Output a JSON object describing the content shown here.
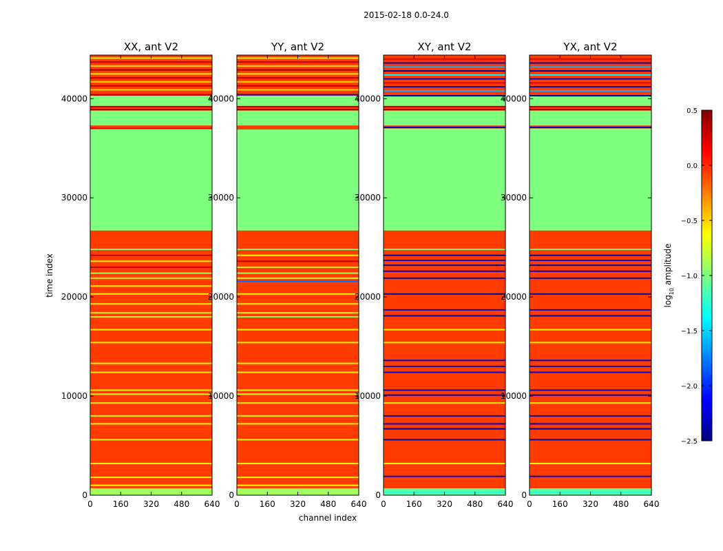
{
  "chart_data": {
    "type": "heatmap",
    "suptitle": "2015-02-18 0.0-24.0",
    "xlabel": "channel index",
    "ylabel": "time index",
    "xlim": [
      0,
      640
    ],
    "ylim": [
      0,
      44400
    ],
    "xticks": [
      "0",
      "160",
      "320",
      "480",
      "640"
    ],
    "xtick_values": [
      0,
      160,
      320,
      480,
      640
    ],
    "yticks": [
      "0",
      "10000",
      "20000",
      "30000",
      "40000"
    ],
    "ytick_values": [
      0,
      10000,
      20000,
      30000,
      40000
    ],
    "colorbar": {
      "label_prefix": "log",
      "label_sub": "10",
      "label_suffix": " amplitude",
      "range": [
        -2.5,
        0.5
      ],
      "ticks": [
        "0.5",
        "0.0",
        "−0.5",
        "−1.0",
        "−1.5",
        "−2.0",
        "−2.5"
      ],
      "tick_values": [
        0.5,
        0.0,
        -0.5,
        -1.0,
        -1.5,
        -2.0,
        -2.5
      ],
      "colors": [
        "#00007f",
        "#0000ff",
        "#007fff",
        "#00ffff",
        "#7fff7f",
        "#ffff00",
        "#ff7f00",
        "#ff0000",
        "#7f0000"
      ]
    },
    "panels": [
      {
        "title": "XX, ant V2",
        "base_value": -0.05,
        "bands": [
          {
            "from": 0,
            "to": 700,
            "value": -0.9
          },
          {
            "from": 26700,
            "to": 37000,
            "value": -1.0
          },
          {
            "from": 37300,
            "to": 38800,
            "value": -1.0
          },
          {
            "from": 39200,
            "to": 40300,
            "value": -1.0
          }
        ],
        "lines": [
          {
            "t": 1000,
            "value": -0.6
          },
          {
            "t": 1800,
            "value": -0.6
          },
          {
            "t": 3200,
            "value": -0.6
          },
          {
            "t": 5600,
            "value": -0.6
          },
          {
            "t": 7200,
            "value": -0.6
          },
          {
            "t": 8000,
            "value": -0.6
          },
          {
            "t": 9300,
            "value": -0.6
          },
          {
            "t": 10200,
            "value": -0.6
          },
          {
            "t": 10600,
            "value": -0.6
          },
          {
            "t": 12400,
            "value": -0.6
          },
          {
            "t": 13300,
            "value": -0.6
          },
          {
            "t": 15400,
            "value": -0.6
          },
          {
            "t": 16700,
            "value": -0.6
          },
          {
            "t": 18000,
            "value": -0.6
          },
          {
            "t": 18400,
            "value": -0.6
          },
          {
            "t": 19300,
            "value": -0.6
          },
          {
            "t": 20300,
            "value": -0.6
          },
          {
            "t": 21100,
            "value": -0.6
          },
          {
            "t": 21900,
            "value": -0.6
          },
          {
            "t": 22400,
            "value": -0.9
          },
          {
            "t": 23000,
            "value": 0.3
          },
          {
            "t": 23600,
            "value": -0.6
          },
          {
            "t": 24200,
            "value": 0.3
          },
          {
            "t": 24800,
            "value": -1.0
          },
          {
            "t": 37000,
            "value": 0.2
          },
          {
            "t": 38900,
            "value": 0.4
          },
          {
            "t": 39200,
            "value": 0.4
          },
          {
            "t": 40400,
            "value": 0.4
          },
          {
            "t": 40900,
            "value": -0.5
          },
          {
            "t": 41300,
            "value": 0.3
          },
          {
            "t": 41700,
            "value": -0.5
          },
          {
            "t": 42100,
            "value": 0.3
          },
          {
            "t": 42500,
            "value": -0.6
          },
          {
            "t": 42900,
            "value": 0.4
          },
          {
            "t": 43300,
            "value": -0.5
          },
          {
            "t": 43700,
            "value": 0.3
          },
          {
            "t": 44100,
            "value": -0.6
          }
        ]
      },
      {
        "title": "YY, ant V2",
        "base_value": -0.05,
        "bands": [
          {
            "from": 0,
            "to": 700,
            "value": -0.9
          },
          {
            "from": 26700,
            "to": 36900,
            "value": -1.0
          },
          {
            "from": 37300,
            "to": 38800,
            "value": -1.0
          },
          {
            "from": 39200,
            "to": 40300,
            "value": -1.0
          }
        ],
        "lines": [
          {
            "t": 1000,
            "value": -0.6
          },
          {
            "t": 1800,
            "value": -0.6
          },
          {
            "t": 3200,
            "value": -0.6
          },
          {
            "t": 5600,
            "value": -0.6
          },
          {
            "t": 7200,
            "value": -0.6
          },
          {
            "t": 8000,
            "value": -0.6
          },
          {
            "t": 9300,
            "value": -0.6
          },
          {
            "t": 10200,
            "value": -0.6
          },
          {
            "t": 10600,
            "value": -0.6
          },
          {
            "t": 12400,
            "value": -0.6
          },
          {
            "t": 13300,
            "value": -0.6
          },
          {
            "t": 15400,
            "value": -0.6
          },
          {
            "t": 16700,
            "value": -0.6
          },
          {
            "t": 18000,
            "value": -0.9
          },
          {
            "t": 18400,
            "value": -0.6
          },
          {
            "t": 19300,
            "value": -0.6
          },
          {
            "t": 20300,
            "value": -0.6
          },
          {
            "t": 21600,
            "value": -1.8
          },
          {
            "t": 21900,
            "value": -0.6
          },
          {
            "t": 22400,
            "value": -0.9
          },
          {
            "t": 23000,
            "value": -0.6
          },
          {
            "t": 23600,
            "value": 0.3
          },
          {
            "t": 24200,
            "value": -0.6
          },
          {
            "t": 24800,
            "value": -1.0
          },
          {
            "t": 37000,
            "value": -0.05
          },
          {
            "t": 38900,
            "value": 0.4
          },
          {
            "t": 39200,
            "value": 0.4
          },
          {
            "t": 40400,
            "value": -2.3
          },
          {
            "t": 40900,
            "value": -0.5
          },
          {
            "t": 41300,
            "value": 0.3
          },
          {
            "t": 41700,
            "value": -0.5
          },
          {
            "t": 42100,
            "value": 0.3
          },
          {
            "t": 42500,
            "value": -0.6
          },
          {
            "t": 42900,
            "value": 0.4
          },
          {
            "t": 43300,
            "value": -0.5
          },
          {
            "t": 43700,
            "value": 0.3
          },
          {
            "t": 44100,
            "value": -0.6
          }
        ]
      },
      {
        "title": "XY, ant V2",
        "base_value": -0.05,
        "bands": [
          {
            "from": 0,
            "to": 700,
            "value": -1.1
          },
          {
            "from": 26700,
            "to": 37000,
            "value": -1.0
          },
          {
            "from": 37300,
            "to": 38800,
            "value": -1.0
          },
          {
            "from": 39200,
            "to": 40300,
            "value": -1.0
          }
        ],
        "lines": [
          {
            "t": 300,
            "value": -1.3
          },
          {
            "t": 1900,
            "value": -2.3
          },
          {
            "t": 3200,
            "value": -0.6
          },
          {
            "t": 5600,
            "value": -2.4
          },
          {
            "t": 6700,
            "value": -2.4
          },
          {
            "t": 7200,
            "value": -2.3
          },
          {
            "t": 8000,
            "value": -2.4
          },
          {
            "t": 9300,
            "value": -0.6
          },
          {
            "t": 10100,
            "value": -2.3
          },
          {
            "t": 10600,
            "value": -2.4
          },
          {
            "t": 12400,
            "value": -2.3
          },
          {
            "t": 13000,
            "value": -2.4
          },
          {
            "t": 13600,
            "value": -2.3
          },
          {
            "t": 15400,
            "value": -0.6
          },
          {
            "t": 16700,
            "value": -0.6
          },
          {
            "t": 18100,
            "value": -2.4
          },
          {
            "t": 18700,
            "value": -2.3
          },
          {
            "t": 20300,
            "value": -2.4
          },
          {
            "t": 21900,
            "value": -2.4
          },
          {
            "t": 22600,
            "value": -2.3
          },
          {
            "t": 23200,
            "value": -2.4
          },
          {
            "t": 23700,
            "value": -2.3
          },
          {
            "t": 24200,
            "value": -2.4
          },
          {
            "t": 24800,
            "value": -1.0
          },
          {
            "t": 37100,
            "value": -2.3
          },
          {
            "t": 38900,
            "value": 0.4
          },
          {
            "t": 39200,
            "value": 0.4
          },
          {
            "t": 40300,
            "value": -2.4
          },
          {
            "t": 40800,
            "value": -1.6
          },
          {
            "t": 41200,
            "value": -2.4
          },
          {
            "t": 41600,
            "value": 0.2
          },
          {
            "t": 42000,
            "value": -2.3
          },
          {
            "t": 42400,
            "value": -1.4
          },
          {
            "t": 42800,
            "value": -2.4
          },
          {
            "t": 43200,
            "value": -1.6
          },
          {
            "t": 43600,
            "value": -2.3
          },
          {
            "t": 44000,
            "value": 0.2
          }
        ]
      },
      {
        "title": "YX, ant V2",
        "base_value": -0.05,
        "bands": [
          {
            "from": 0,
            "to": 700,
            "value": -1.1
          },
          {
            "from": 26700,
            "to": 37000,
            "value": -1.0
          },
          {
            "from": 37300,
            "to": 38800,
            "value": -1.0
          },
          {
            "from": 39200,
            "to": 40300,
            "value": -1.0
          }
        ],
        "lines": [
          {
            "t": 300,
            "value": -1.3
          },
          {
            "t": 1900,
            "value": -2.3
          },
          {
            "t": 3200,
            "value": -0.6
          },
          {
            "t": 5600,
            "value": -2.4
          },
          {
            "t": 6700,
            "value": -2.4
          },
          {
            "t": 7200,
            "value": -2.3
          },
          {
            "t": 8000,
            "value": -2.4
          },
          {
            "t": 9300,
            "value": -0.6
          },
          {
            "t": 10100,
            "value": -2.3
          },
          {
            "t": 10600,
            "value": -2.4
          },
          {
            "t": 12400,
            "value": -2.3
          },
          {
            "t": 13000,
            "value": -2.4
          },
          {
            "t": 13600,
            "value": -2.3
          },
          {
            "t": 15400,
            "value": -0.6
          },
          {
            "t": 16700,
            "value": -0.6
          },
          {
            "t": 18100,
            "value": -2.4
          },
          {
            "t": 18700,
            "value": -2.3
          },
          {
            "t": 20300,
            "value": -2.4
          },
          {
            "t": 21900,
            "value": -2.4
          },
          {
            "t": 22600,
            "value": -2.3
          },
          {
            "t": 23200,
            "value": -2.4
          },
          {
            "t": 23700,
            "value": -2.3
          },
          {
            "t": 24200,
            "value": -2.4
          },
          {
            "t": 24800,
            "value": -1.0
          },
          {
            "t": 37100,
            "value": -2.3
          },
          {
            "t": 38900,
            "value": 0.4
          },
          {
            "t": 39200,
            "value": 0.4
          },
          {
            "t": 40300,
            "value": -2.4
          },
          {
            "t": 40800,
            "value": -1.6
          },
          {
            "t": 41200,
            "value": -2.4
          },
          {
            "t": 41600,
            "value": 0.2
          },
          {
            "t": 42000,
            "value": -2.3
          },
          {
            "t": 42400,
            "value": -1.4
          },
          {
            "t": 42800,
            "value": -2.4
          },
          {
            "t": 43200,
            "value": -1.6
          },
          {
            "t": 43600,
            "value": -2.3
          },
          {
            "t": 44000,
            "value": 0.2
          }
        ]
      }
    ]
  }
}
